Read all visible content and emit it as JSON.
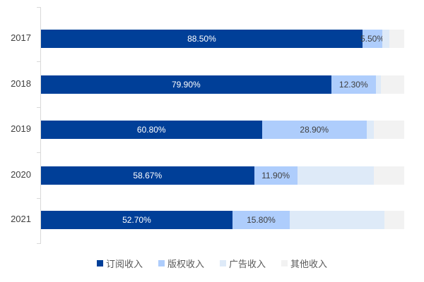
{
  "chart_data": {
    "type": "bar",
    "orientation": "horizontal",
    "stacked": true,
    "categories": [
      "2017",
      "2018",
      "2019",
      "2020",
      "2021"
    ],
    "series": [
      {
        "name": "订阅收入",
        "color": "#003f98",
        "values": [
          88.5,
          79.9,
          60.8,
          58.67,
          52.7
        ],
        "labels": [
          "88.50%",
          "79.90%",
          "60.80%",
          "58.67%",
          "52.70%"
        ]
      },
      {
        "name": "版权收入",
        "color": "#aecdfc",
        "values": [
          5.5,
          12.3,
          28.9,
          11.9,
          15.8
        ],
        "labels": [
          "5.50%",
          "12.30%",
          "28.90%",
          "11.90%",
          "15.80%"
        ]
      },
      {
        "name": "广告收入",
        "color": "#deeaf8",
        "values": [
          2.0,
          1.4,
          2.0,
          21.0,
          26.0
        ],
        "labels": [
          "",
          "",
          "",
          "",
          ""
        ]
      },
      {
        "name": "其他收入",
        "color": "#f2f2f2",
        "values": [
          4.0,
          6.4,
          8.3,
          8.43,
          5.5
        ],
        "labels": [
          "",
          "",
          "",
          "",
          ""
        ]
      }
    ],
    "title": "",
    "xlabel": "",
    "ylabel": "",
    "xlim": [
      0,
      100
    ],
    "grid": false,
    "legend_position": "bottom"
  }
}
